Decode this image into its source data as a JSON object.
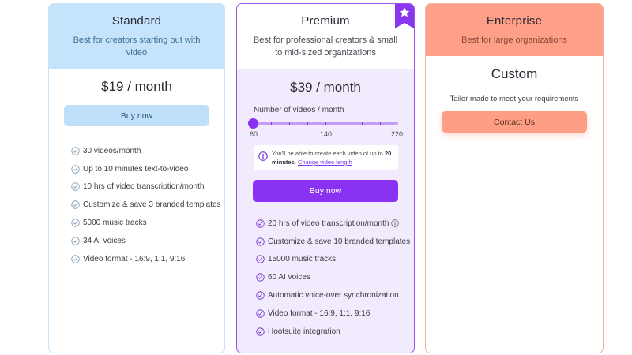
{
  "standard": {
    "name": "Standard",
    "subtitle": "Best for creators starting out with video",
    "price": "$19 / month",
    "button": "Buy now",
    "features": [
      "30 videos/month",
      "Up to 10 minutes text-to-video",
      "10 hrs of video transcription/month",
      "Customize & save 3 branded templates",
      "5000 music tracks",
      "34 AI voices",
      "Video format - 16:9, 1:1, 9:16"
    ]
  },
  "premium": {
    "name": "Premium",
    "subtitle": "Best for professional creators & small to mid-sized organizations",
    "price": "$39 / month",
    "slider": {
      "label": "Number of videos / month",
      "min_label": "60",
      "mid_label": "140",
      "max_label": "220",
      "value": 60
    },
    "note": {
      "text_before": "You'll be able to create each video of up to ",
      "bold": "20 minutes.",
      "link": "Change video length"
    },
    "button": "Buy now",
    "features": [
      "20 hrs of video transcription/month",
      "Customize & save 10 branded templates",
      "15000 music tracks",
      "60 AI voices",
      "Automatic voice-over synchronization",
      "Video format - 16:9, 1:1, 9:16",
      "Hootsuite integration"
    ]
  },
  "enterprise": {
    "name": "Enterprise",
    "subtitle": "Best for large organizations",
    "price": "Custom",
    "tagline": "Tailor made to meet your requirements",
    "button": "Contact Us"
  },
  "colors": {
    "premium_accent": "#8a32f1",
    "standard_accent": "#c5e3fb",
    "enterprise_accent": "#fe9f87"
  },
  "icons": [
    "star-icon",
    "check-circle-icon",
    "info-icon"
  ]
}
